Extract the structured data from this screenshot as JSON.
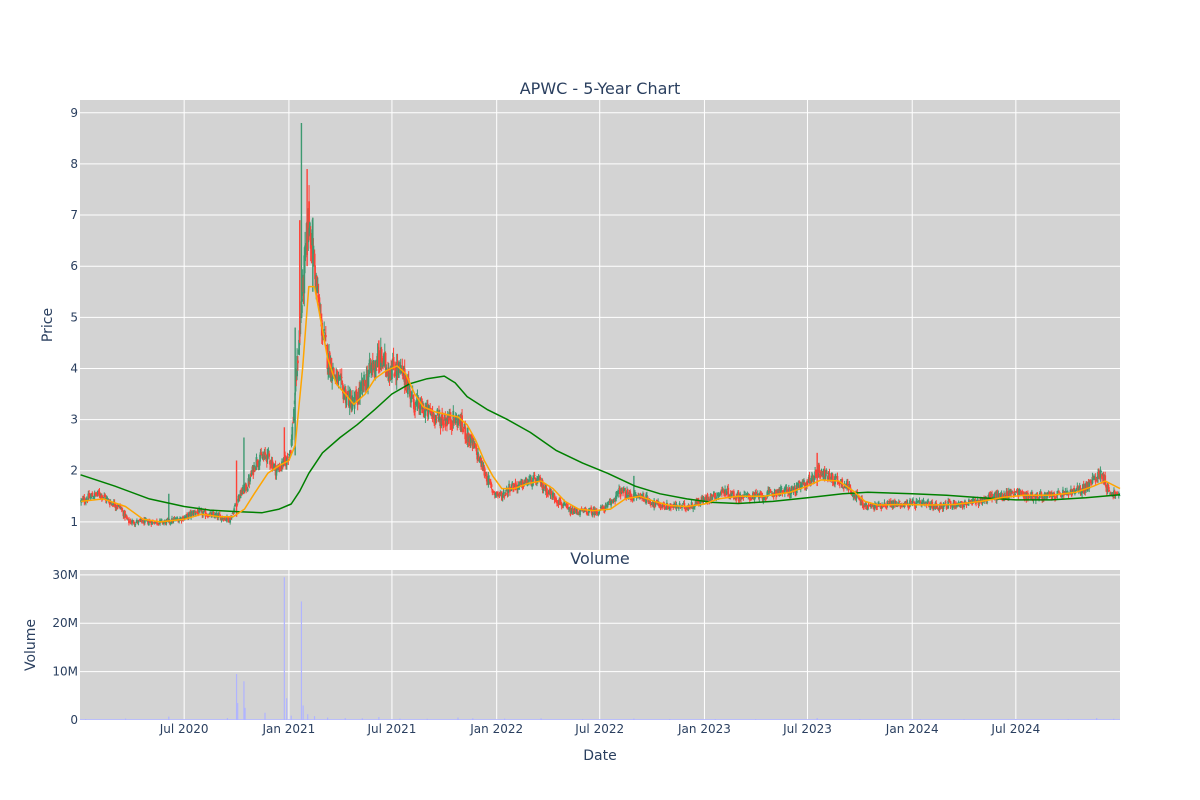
{
  "chart_data": [
    {
      "type": "candlestick",
      "title": "APWC - 5-Year Chart",
      "ylabel": "Price",
      "ylim": [
        0.45,
        9.25
      ],
      "yticks": [
        "1",
        "2",
        "3",
        "4",
        "5",
        "6",
        "7",
        "8",
        "9"
      ],
      "grid": true,
      "x_range": [
        "2019-12-31",
        "2024-12-31"
      ],
      "colors": {
        "plot_bg": "#d3d3d3",
        "grid": "#ffffff",
        "increasing": "#3d9970",
        "decreasing": "#ff4136",
        "ma_short": "#ffa500",
        "ma_long": "#008000",
        "text": "#2a3f5f"
      },
      "close_path": [
        [
          "2020-01-02",
          1.4
        ],
        [
          "2020-01-20",
          1.5
        ],
        [
          "2020-02-05",
          1.55
        ],
        [
          "2020-02-20",
          1.4
        ],
        [
          "2020-03-10",
          1.3
        ],
        [
          "2020-03-25",
          1.0
        ],
        [
          "2020-04-15",
          1.0
        ],
        [
          "2020-05-10",
          1.0
        ],
        [
          "2020-06-01",
          1.0
        ],
        [
          "2020-06-20",
          1.05
        ],
        [
          "2020-07-05",
          1.1
        ],
        [
          "2020-07-20",
          1.2
        ],
        [
          "2020-08-10",
          1.15
        ],
        [
          "2020-09-01",
          1.1
        ],
        [
          "2020-09-20",
          1.05
        ],
        [
          "2020-10-05",
          1.5
        ],
        [
          "2020-10-20",
          1.7
        ],
        [
          "2020-11-05",
          2.2
        ],
        [
          "2020-11-25",
          2.3
        ],
        [
          "2020-12-10",
          2.0
        ],
        [
          "2020-12-28",
          2.2
        ],
        [
          "2021-01-05",
          2.5
        ],
        [
          "2021-01-15",
          4.0
        ],
        [
          "2021-01-25",
          5.5
        ],
        [
          "2021-02-05",
          7.0
        ],
        [
          "2021-02-15",
          6.0
        ],
        [
          "2021-02-25",
          5.0
        ],
        [
          "2021-03-10",
          4.2
        ],
        [
          "2021-03-25",
          3.8
        ],
        [
          "2021-04-10",
          3.5
        ],
        [
          "2021-04-25",
          3.3
        ],
        [
          "2021-05-10",
          3.6
        ],
        [
          "2021-05-25",
          4.0
        ],
        [
          "2021-06-10",
          4.2
        ],
        [
          "2021-06-25",
          4.0
        ],
        [
          "2021-07-10",
          4.0
        ],
        [
          "2021-07-25",
          3.8
        ],
        [
          "2021-08-10",
          3.3
        ],
        [
          "2021-08-25",
          3.2
        ],
        [
          "2021-09-10",
          3.1
        ],
        [
          "2021-09-25",
          3.0
        ],
        [
          "2021-10-10",
          3.0
        ],
        [
          "2021-10-25",
          3.0
        ],
        [
          "2021-11-10",
          2.7
        ],
        [
          "2021-11-25",
          2.4
        ],
        [
          "2021-12-10",
          2.0
        ],
        [
          "2021-12-25",
          1.6
        ],
        [
          "2022-01-10",
          1.5
        ],
        [
          "2022-01-25",
          1.7
        ],
        [
          "2022-02-10",
          1.7
        ],
        [
          "2022-02-25",
          1.8
        ],
        [
          "2022-03-15",
          1.8
        ],
        [
          "2022-04-01",
          1.6
        ],
        [
          "2022-04-20",
          1.4
        ],
        [
          "2022-05-10",
          1.2
        ],
        [
          "2022-06-01",
          1.2
        ],
        [
          "2022-06-25",
          1.2
        ],
        [
          "2022-07-15",
          1.3
        ],
        [
          "2022-08-05",
          1.6
        ],
        [
          "2022-08-25",
          1.5
        ],
        [
          "2022-09-15",
          1.5
        ],
        [
          "2022-10-05",
          1.35
        ],
        [
          "2022-10-25",
          1.3
        ],
        [
          "2022-11-15",
          1.3
        ],
        [
          "2022-12-05",
          1.3
        ],
        [
          "2022-12-25",
          1.4
        ],
        [
          "2023-01-15",
          1.5
        ],
        [
          "2023-02-05",
          1.6
        ],
        [
          "2023-02-25",
          1.5
        ],
        [
          "2023-03-20",
          1.5
        ],
        [
          "2023-04-15",
          1.5
        ],
        [
          "2023-05-10",
          1.6
        ],
        [
          "2023-06-01",
          1.6
        ],
        [
          "2023-06-20",
          1.7
        ],
        [
          "2023-07-05",
          1.8
        ],
        [
          "2023-07-20",
          2.0
        ],
        [
          "2023-08-05",
          1.9
        ],
        [
          "2023-08-25",
          1.8
        ],
        [
          "2023-09-10",
          1.7
        ],
        [
          "2023-09-25",
          1.5
        ],
        [
          "2023-10-10",
          1.3
        ],
        [
          "2023-10-25",
          1.3
        ],
        [
          "2023-11-15",
          1.35
        ],
        [
          "2023-12-10",
          1.35
        ],
        [
          "2024-01-05",
          1.35
        ],
        [
          "2024-01-25",
          1.35
        ],
        [
          "2024-02-15",
          1.3
        ],
        [
          "2024-03-10",
          1.35
        ],
        [
          "2024-04-01",
          1.35
        ],
        [
          "2024-04-25",
          1.4
        ],
        [
          "2024-05-20",
          1.5
        ],
        [
          "2024-06-10",
          1.5
        ],
        [
          "2024-06-30",
          1.6
        ],
        [
          "2024-07-20",
          1.5
        ],
        [
          "2024-08-10",
          1.5
        ],
        [
          "2024-09-01",
          1.5
        ],
        [
          "2024-09-25",
          1.55
        ],
        [
          "2024-10-15",
          1.6
        ],
        [
          "2024-11-05",
          1.7
        ],
        [
          "2024-11-20",
          1.9
        ],
        [
          "2024-12-01",
          1.95
        ],
        [
          "2024-12-10",
          1.6
        ],
        [
          "2024-12-31",
          1.5
        ]
      ],
      "spikes": [
        [
          "2020-06-04",
          1.0,
          1.55
        ],
        [
          "2020-10-01",
          1.1,
          2.2
        ],
        [
          "2020-10-14",
          1.6,
          2.65
        ],
        [
          "2020-12-24",
          2.1,
          2.85
        ],
        [
          "2021-01-12",
          2.3,
          4.8
        ],
        [
          "2021-01-20",
          4.5,
          6.9
        ],
        [
          "2021-01-23",
          5.0,
          8.8
        ],
        [
          "2021-02-02",
          6.0,
          7.9
        ],
        [
          "2021-02-12",
          5.5,
          6.95
        ],
        [
          "2023-07-18",
          1.7,
          2.35
        ],
        [
          "2022-08-30",
          1.4,
          1.9
        ],
        [
          "2021-06-08",
          3.9,
          4.55
        ]
      ],
      "ma_short": [
        [
          "2020-01-02",
          1.4
        ],
        [
          "2020-02-10",
          1.45
        ],
        [
          "2020-03-20",
          1.3
        ],
        [
          "2020-04-20",
          1.05
        ],
        [
          "2020-05-20",
          1.0
        ],
        [
          "2020-07-01",
          1.05
        ],
        [
          "2020-08-01",
          1.15
        ],
        [
          "2020-09-01",
          1.1
        ],
        [
          "2020-09-25",
          1.1
        ],
        [
          "2020-10-15",
          1.25
        ],
        [
          "2020-11-01",
          1.55
        ],
        [
          "2020-11-25",
          1.95
        ],
        [
          "2020-12-15",
          2.1
        ],
        [
          "2021-01-01",
          2.2
        ],
        [
          "2021-01-12",
          2.5
        ],
        [
          "2021-01-25",
          4.0
        ],
        [
          "2021-02-05",
          5.6
        ],
        [
          "2021-02-15",
          5.6
        ],
        [
          "2021-02-25",
          5.0
        ],
        [
          "2021-03-10",
          4.2
        ],
        [
          "2021-03-25",
          3.7
        ],
        [
          "2021-04-10",
          3.5
        ],
        [
          "2021-04-25",
          3.3
        ],
        [
          "2021-05-15",
          3.5
        ],
        [
          "2021-06-01",
          3.8
        ],
        [
          "2021-06-20",
          3.95
        ],
        [
          "2021-07-10",
          4.05
        ],
        [
          "2021-07-25",
          3.9
        ],
        [
          "2021-08-10",
          3.5
        ],
        [
          "2021-08-25",
          3.25
        ],
        [
          "2021-09-15",
          3.15
        ],
        [
          "2021-10-05",
          3.1
        ],
        [
          "2021-10-25",
          3.05
        ],
        [
          "2021-11-10",
          2.9
        ],
        [
          "2021-11-25",
          2.6
        ],
        [
          "2021-12-10",
          2.2
        ],
        [
          "2021-12-25",
          1.9
        ],
        [
          "2022-01-10",
          1.65
        ],
        [
          "2022-02-01",
          1.65
        ],
        [
          "2022-02-25",
          1.75
        ],
        [
          "2022-03-20",
          1.8
        ],
        [
          "2022-04-10",
          1.65
        ],
        [
          "2022-05-01",
          1.4
        ],
        [
          "2022-05-25",
          1.25
        ],
        [
          "2022-06-20",
          1.22
        ],
        [
          "2022-07-20",
          1.25
        ],
        [
          "2022-08-15",
          1.45
        ],
        [
          "2022-09-10",
          1.5
        ],
        [
          "2022-10-05",
          1.4
        ],
        [
          "2022-11-01",
          1.32
        ],
        [
          "2022-12-01",
          1.3
        ],
        [
          "2023-01-01",
          1.35
        ],
        [
          "2023-01-25",
          1.45
        ],
        [
          "2023-03-01",
          1.5
        ],
        [
          "2023-04-15",
          1.5
        ],
        [
          "2023-06-01",
          1.58
        ],
        [
          "2023-07-01",
          1.7
        ],
        [
          "2023-07-25",
          1.82
        ],
        [
          "2023-08-25",
          1.8
        ],
        [
          "2023-09-20",
          1.6
        ],
        [
          "2023-10-10",
          1.4
        ],
        [
          "2023-11-01",
          1.33
        ],
        [
          "2023-12-15",
          1.34
        ],
        [
          "2024-02-01",
          1.33
        ],
        [
          "2024-03-15",
          1.34
        ],
        [
          "2024-05-01",
          1.4
        ],
        [
          "2024-06-10",
          1.48
        ],
        [
          "2024-07-15",
          1.52
        ],
        [
          "2024-09-01",
          1.52
        ],
        [
          "2024-10-15",
          1.58
        ],
        [
          "2024-11-15",
          1.7
        ],
        [
          "2024-12-05",
          1.8
        ],
        [
          "2024-12-31",
          1.65
        ]
      ],
      "ma_long": [
        [
          "2020-01-01",
          1.92
        ],
        [
          "2020-03-01",
          1.7
        ],
        [
          "2020-05-01",
          1.45
        ],
        [
          "2020-07-01",
          1.3
        ],
        [
          "2020-08-15",
          1.23
        ],
        [
          "2020-10-01",
          1.2
        ],
        [
          "2020-11-15",
          1.18
        ],
        [
          "2020-12-15",
          1.25
        ],
        [
          "2021-01-05",
          1.35
        ],
        [
          "2021-01-20",
          1.6
        ],
        [
          "2021-02-05",
          1.95
        ],
        [
          "2021-03-01",
          2.35
        ],
        [
          "2021-04-01",
          2.65
        ],
        [
          "2021-05-01",
          2.9
        ],
        [
          "2021-06-01",
          3.2
        ],
        [
          "2021-07-01",
          3.5
        ],
        [
          "2021-08-01",
          3.7
        ],
        [
          "2021-09-01",
          3.8
        ],
        [
          "2021-10-01",
          3.85
        ],
        [
          "2021-10-20",
          3.72
        ],
        [
          "2021-11-10",
          3.45
        ],
        [
          "2021-12-15",
          3.2
        ],
        [
          "2022-01-20",
          3.0
        ],
        [
          "2022-03-01",
          2.75
        ],
        [
          "2022-04-15",
          2.4
        ],
        [
          "2022-06-01",
          2.15
        ],
        [
          "2022-07-15",
          1.95
        ],
        [
          "2022-09-01",
          1.7
        ],
        [
          "2022-10-15",
          1.55
        ],
        [
          "2022-12-01",
          1.45
        ],
        [
          "2023-01-15",
          1.38
        ],
        [
          "2023-03-01",
          1.36
        ],
        [
          "2023-05-01",
          1.4
        ],
        [
          "2023-07-01",
          1.47
        ],
        [
          "2023-09-01",
          1.55
        ],
        [
          "2023-10-15",
          1.58
        ],
        [
          "2024-01-01",
          1.55
        ],
        [
          "2024-03-01",
          1.52
        ],
        [
          "2024-05-01",
          1.47
        ],
        [
          "2024-07-01",
          1.43
        ],
        [
          "2024-09-01",
          1.43
        ],
        [
          "2024-11-01",
          1.47
        ],
        [
          "2024-12-31",
          1.53
        ]
      ]
    },
    {
      "type": "bar",
      "title": "Volume",
      "xlabel": "Date",
      "ylabel": "Volume",
      "ylim": [
        0,
        31000000
      ],
      "yticks": [
        "0",
        "10M",
        "20M",
        "30M"
      ],
      "xticks": [
        "Jul 2020",
        "Jan 2021",
        "Jul 2021",
        "Jan 2022",
        "Jul 2022",
        "Jan 2023",
        "Jul 2023",
        "Jan 2024",
        "Jul 2024"
      ],
      "grid": true,
      "colors": {
        "bar": "#b0b4ff"
      },
      "values": [
        [
          "2020-01-10",
          150000
        ],
        [
          "2020-03-20",
          300000
        ],
        [
          "2020-06-04",
          700000
        ],
        [
          "2020-09-15",
          400000
        ],
        [
          "2020-10-01",
          9500000
        ],
        [
          "2020-10-03",
          3500000
        ],
        [
          "2020-10-14",
          8000000
        ],
        [
          "2020-10-16",
          2500000
        ],
        [
          "2020-11-20",
          1500000
        ],
        [
          "2020-12-24",
          29500000
        ],
        [
          "2020-12-28",
          4500000
        ],
        [
          "2021-01-05",
          900000
        ],
        [
          "2021-01-23",
          24500000
        ],
        [
          "2021-01-26",
          3000000
        ],
        [
          "2021-02-03",
          1200000
        ],
        [
          "2021-02-15",
          800000
        ],
        [
          "2021-03-10",
          500000
        ],
        [
          "2021-04-10",
          400000
        ],
        [
          "2021-05-10",
          350000
        ],
        [
          "2021-06-08",
          600000
        ],
        [
          "2021-07-15",
          300000
        ],
        [
          "2021-09-01",
          250000
        ],
        [
          "2021-10-25",
          500000
        ],
        [
          "2021-11-20",
          350000
        ],
        [
          "2022-01-15",
          300000
        ],
        [
          "2022-03-20",
          350000
        ],
        [
          "2022-06-01",
          200000
        ],
        [
          "2022-08-30",
          300000
        ],
        [
          "2022-11-01",
          200000
        ],
        [
          "2023-01-20",
          200000
        ],
        [
          "2023-04-01",
          150000
        ],
        [
          "2023-07-18",
          400000
        ],
        [
          "2023-10-01",
          200000
        ],
        [
          "2024-01-15",
          150000
        ],
        [
          "2024-04-01",
          150000
        ],
        [
          "2024-07-01",
          200000
        ],
        [
          "2024-10-01",
          200000
        ],
        [
          "2024-11-20",
          400000
        ],
        [
          "2024-12-20",
          250000
        ]
      ]
    }
  ]
}
